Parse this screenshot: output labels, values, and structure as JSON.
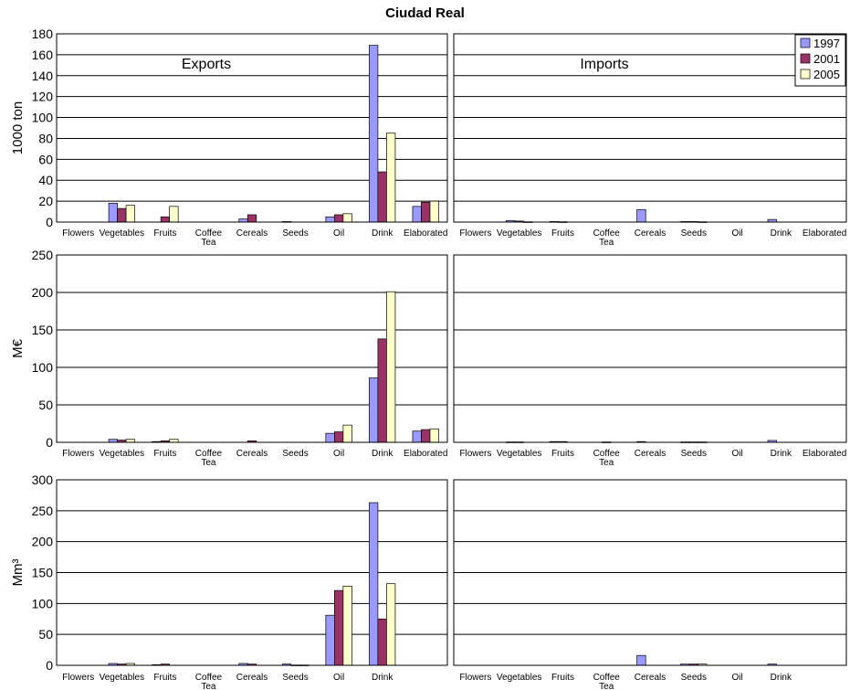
{
  "title": "Ciudad Real",
  "series_names": [
    "1997",
    "2001",
    "2005"
  ],
  "colors": {
    "1997": "#9999ff",
    "2001": "#993366",
    "2005": "#ffffcc",
    "border": "#000000",
    "grid": "#000000"
  },
  "legend": {
    "placement": "top-right",
    "panel": "imports-1000ton",
    "entries": [
      "1997",
      "2001",
      "2005"
    ]
  },
  "panel_labels": {
    "exports": "Exports",
    "imports": "Imports"
  },
  "ylabels": {
    "row1": "1000 ton",
    "row2": "M€",
    "row3": "Mm³"
  },
  "chart_data": [
    {
      "type": "bar",
      "id": "exports-1000ton",
      "panel_label": "Exports",
      "ylabel": "1000 ton",
      "ylim": [
        0,
        180
      ],
      "yticks": [
        0,
        20,
        40,
        60,
        80,
        100,
        120,
        140,
        160,
        180
      ],
      "grid": true,
      "categories": [
        "Flowers",
        "Vegetables",
        "Fruits",
        "Coffee Tea",
        "Cereals",
        "Seeds",
        "Oil",
        "Drink",
        "Elaborated"
      ],
      "series": [
        {
          "name": "1997",
          "values": [
            0,
            18,
            0,
            0,
            3,
            0.5,
            5,
            169,
            15
          ]
        },
        {
          "name": "2001",
          "values": [
            0,
            13,
            5,
            0,
            7,
            0,
            7,
            48,
            19
          ]
        },
        {
          "name": "2005",
          "values": [
            0,
            16,
            15,
            0,
            0,
            0,
            8,
            85,
            20
          ]
        }
      ]
    },
    {
      "type": "bar",
      "id": "imports-1000ton",
      "panel_label": "Imports",
      "ylabel": "",
      "ylim": [
        0,
        180
      ],
      "yticks": [
        0,
        20,
        40,
        60,
        80,
        100,
        120,
        140,
        160,
        180
      ],
      "grid": true,
      "categories": [
        "Flowers",
        "Vegetables",
        "Fruits",
        "Coffee Tea",
        "Cereals",
        "Seeds",
        "Oil",
        "Drink",
        "Elaborated"
      ],
      "series": [
        {
          "name": "1997",
          "values": [
            0,
            1.5,
            0.5,
            0,
            12,
            0.5,
            0,
            2.5,
            0
          ]
        },
        {
          "name": "2001",
          "values": [
            0,
            1,
            0.3,
            0,
            0,
            0.5,
            0,
            0,
            0
          ]
        },
        {
          "name": "2005",
          "values": [
            0,
            0.3,
            0,
            0,
            0,
            0.3,
            0,
            0,
            0
          ]
        }
      ]
    },
    {
      "type": "bar",
      "id": "exports-meur",
      "panel_label": "",
      "ylabel": "M€",
      "ylim": [
        0,
        250
      ],
      "yticks": [
        0,
        50,
        100,
        150,
        200,
        250
      ],
      "grid": true,
      "categories": [
        "Flowers",
        "Vegetables",
        "Fruits",
        "Coffee Tea",
        "Cereals",
        "Seeds",
        "Oil",
        "Drink",
        "Elaborated"
      ],
      "series": [
        {
          "name": "1997",
          "values": [
            0,
            4,
            1,
            0,
            0,
            0,
            12,
            86,
            15
          ]
        },
        {
          "name": "2001",
          "values": [
            0,
            3,
            2,
            0,
            2,
            0,
            14,
            138,
            17
          ]
        },
        {
          "name": "2005",
          "values": [
            0,
            4,
            4,
            0,
            0,
            0,
            23,
            201,
            18
          ]
        }
      ]
    },
    {
      "type": "bar",
      "id": "imports-meur",
      "panel_label": "",
      "ylabel": "",
      "ylim": [
        0,
        250
      ],
      "yticks": [
        0,
        50,
        100,
        150,
        200,
        250
      ],
      "grid": true,
      "categories": [
        "Flowers",
        "Vegetables",
        "Fruits",
        "Coffee Tea",
        "Cereals",
        "Seeds",
        "Oil",
        "Drink",
        "Elaborated"
      ],
      "series": [
        {
          "name": "1997",
          "values": [
            0,
            0.5,
            1,
            0,
            1,
            0.5,
            0,
            2.5,
            0
          ]
        },
        {
          "name": "2001",
          "values": [
            0,
            0.5,
            1,
            0.5,
            0,
            0.5,
            0,
            0,
            0
          ]
        },
        {
          "name": "2005",
          "values": [
            0,
            0,
            0,
            0,
            0,
            0.5,
            0,
            0,
            0
          ]
        }
      ]
    },
    {
      "type": "bar",
      "id": "exports-mm3",
      "panel_label": "",
      "ylabel": "Mm³",
      "ylim": [
        0,
        300
      ],
      "yticks": [
        0,
        50,
        100,
        150,
        200,
        250,
        300
      ],
      "grid": true,
      "categories": [
        "Flowers",
        "Vegetables",
        "Fruits",
        "Coffee Tea",
        "Cereals",
        "Seeds",
        "Oil",
        "Drink",
        ""
      ],
      "series": [
        {
          "name": "1997",
          "values": [
            0,
            3,
            1,
            0,
            3,
            2,
            81,
            263,
            0
          ]
        },
        {
          "name": "2001",
          "values": [
            0,
            2,
            2,
            0,
            2,
            0.5,
            121,
            75,
            0
          ]
        },
        {
          "name": "2005",
          "values": [
            0,
            3,
            0,
            0,
            0,
            0.5,
            128,
            132,
            0
          ]
        }
      ]
    },
    {
      "type": "bar",
      "id": "imports-mm3",
      "panel_label": "",
      "ylabel": "",
      "ylim": [
        0,
        300
      ],
      "yticks": [
        0,
        50,
        100,
        150,
        200,
        250,
        300
      ],
      "grid": true,
      "categories": [
        "Flowers",
        "Vegetables",
        "Fruits",
        "Coffee Tea",
        "Cereals",
        "Seeds",
        "Oil",
        "Drink",
        ""
      ],
      "series": [
        {
          "name": "1997",
          "values": [
            0,
            0,
            0,
            0,
            16,
            2,
            0,
            2,
            0
          ]
        },
        {
          "name": "2001",
          "values": [
            0,
            0,
            0,
            0,
            0,
            2,
            0,
            0,
            0
          ]
        },
        {
          "name": "2005",
          "values": [
            0,
            0,
            0,
            0,
            0,
            2,
            0,
            0,
            0
          ]
        }
      ]
    }
  ]
}
